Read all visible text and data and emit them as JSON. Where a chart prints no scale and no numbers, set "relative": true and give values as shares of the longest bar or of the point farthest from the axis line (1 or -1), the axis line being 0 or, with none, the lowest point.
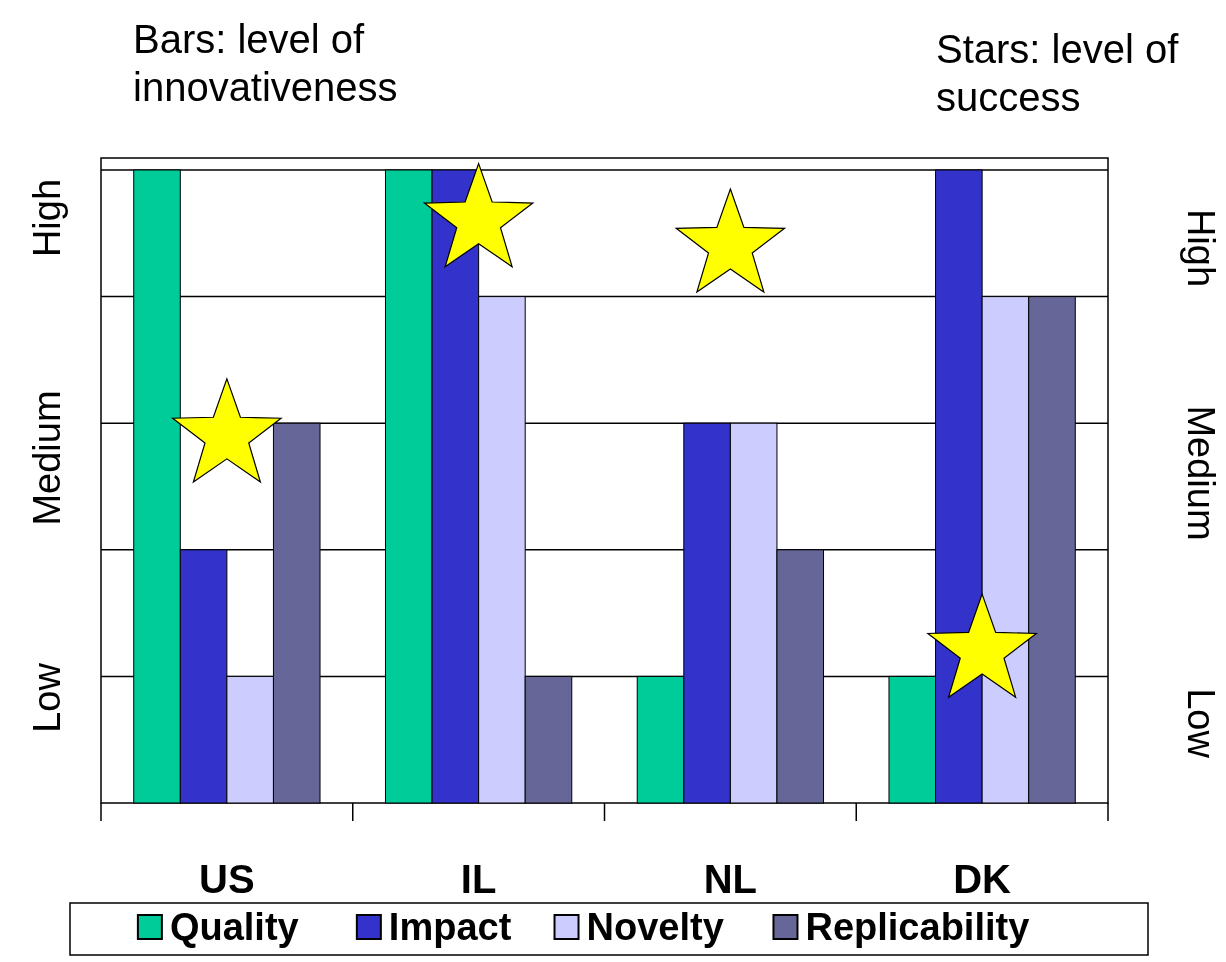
{
  "chart_data": {
    "type": "bar",
    "relative": true,
    "categories": [
      "US",
      "IL",
      "NL",
      "DK"
    ],
    "series": [
      {
        "name": "Quality",
        "color": "#00cc99",
        "values": [
          1,
          1,
          0.2,
          0.2
        ]
      },
      {
        "name": "Impact",
        "color": "#3333cc",
        "values": [
          0.4,
          1,
          0.6,
          1
        ]
      },
      {
        "name": "Novelty",
        "color": "#ccccff",
        "values": [
          0.2,
          0.8,
          0.6,
          0.8
        ]
      },
      {
        "name": "Replicability",
        "color": "#666699",
        "values": [
          0.6,
          0.2,
          0.4,
          0.8
        ]
      },
      {
        "type": "scatter",
        "marker": "star",
        "color": "#ffff00",
        "x": [
          "US",
          "IL",
          "NL",
          "DK"
        ],
        "values": [
          0.58,
          0.92,
          0.88,
          0.24
        ]
      }
    ],
    "grid": "y",
    "legend": "bottom",
    "annotations": [
      "Bars: level of innovativeness",
      "Stars: level of success",
      "Low",
      "Medium",
      "High",
      "Low",
      "Medium",
      "High"
    ]
  }
}
